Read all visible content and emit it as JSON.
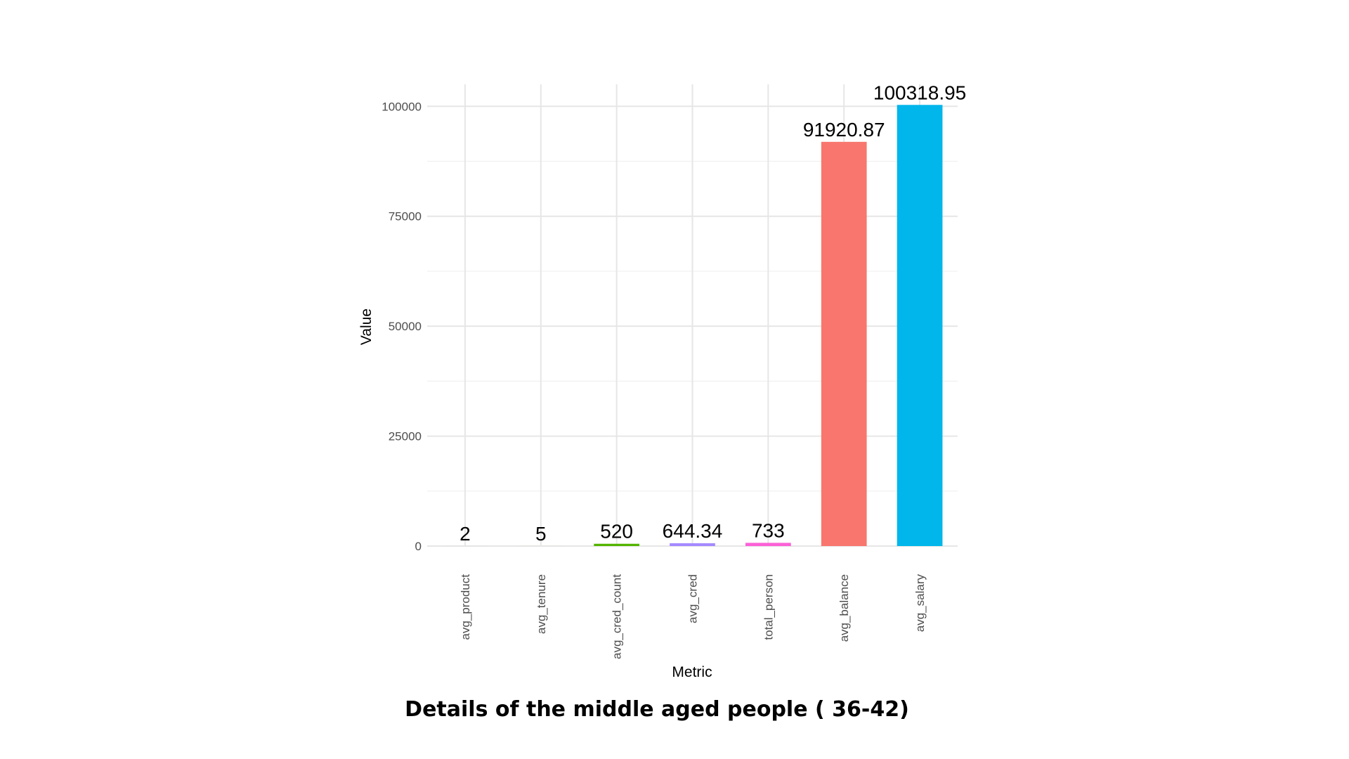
{
  "caption": "Details of the middle aged people ( 36-42)",
  "chart_data": {
    "type": "bar",
    "title": "",
    "xlabel": "Metric",
    "ylabel": "Value",
    "ylim": [
      0,
      105000
    ],
    "yticks": [
      0,
      25000,
      50000,
      75000,
      100000
    ],
    "grid": true,
    "categories": [
      "avg_product",
      "avg_tenure",
      "avg_cred_count",
      "avg_cred",
      "total_person",
      "avg_balance",
      "avg_salary"
    ],
    "values": [
      2,
      5,
      520,
      644.34,
      733,
      91920.87,
      100318.95
    ],
    "labels": [
      "2",
      "5",
      "520",
      "644.34",
      "733",
      "91920.87",
      "100318.95"
    ],
    "colors": [
      "#F8766D",
      "#C49A00",
      "#53B400",
      "#A58AFF",
      "#FB61D7",
      "#F8766D",
      "#00B6EB"
    ],
    "legend": "none"
  }
}
